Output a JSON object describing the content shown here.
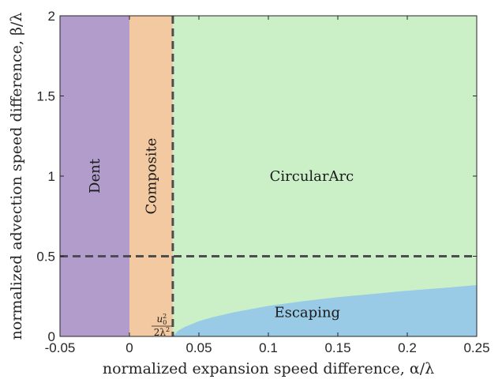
{
  "chart_data": {
    "type": "area",
    "title": "",
    "xlabel": "normalized expansion speed difference, α/λ",
    "ylabel": "normalized advection speed difference, β/λ",
    "xlim": [
      -0.05,
      0.25
    ],
    "ylim": [
      0,
      2
    ],
    "xticks": [
      "-0.05",
      "0",
      "0.05",
      "0.1",
      "0.15",
      "0.2",
      "0.25"
    ],
    "yticks": [
      "0",
      "0.5",
      "1",
      "1.5",
      "2"
    ],
    "grid": false,
    "legend": "none",
    "colors": {
      "dent": "#b19ccb",
      "composite": "#f2c9a0",
      "circulararc": "#cbf0c8",
      "escaping": "#99cbe6",
      "dashed_line": "#4d4d4d"
    },
    "regions": [
      {
        "name": "Dent",
        "x_range": [
          -0.05,
          0
        ],
        "y_range": [
          0,
          2
        ]
      },
      {
        "name": "Composite",
        "x_range": [
          0,
          0.0312
        ],
        "y_range": [
          0,
          2
        ]
      },
      {
        "name": "CircularArc",
        "x_range": [
          0.0312,
          0.25
        ],
        "y_range": [
          0,
          2
        ]
      },
      {
        "name": "Escaping",
        "x_range": [
          0.0312,
          0.25
        ],
        "y_upper_boundary": "concave curve rising from 0 at x≈0.031 to ≈0.32 at x=0.25"
      }
    ],
    "escaping_boundary": {
      "x": [
        0.0312,
        0.035,
        0.04,
        0.05,
        0.06,
        0.075,
        0.1,
        0.125,
        0.15,
        0.175,
        0.2,
        0.225,
        0.25
      ],
      "y": [
        0.0,
        0.035,
        0.06,
        0.095,
        0.12,
        0.15,
        0.19,
        0.22,
        0.245,
        0.265,
        0.285,
        0.302,
        0.32
      ]
    },
    "dashed_lines": [
      {
        "orientation": "vertical",
        "x": 0.0312
      },
      {
        "orientation": "horizontal",
        "y": 0.5
      }
    ],
    "annotations": {
      "dent": "Dent",
      "composite": "Composite",
      "circulararc": "CircularArc",
      "escaping": "Escaping",
      "threshold_num": "u",
      "threshold_num_sup": "2",
      "threshold_num_sub": "0",
      "threshold_den": "2λ",
      "threshold_den_sup": "2"
    }
  }
}
